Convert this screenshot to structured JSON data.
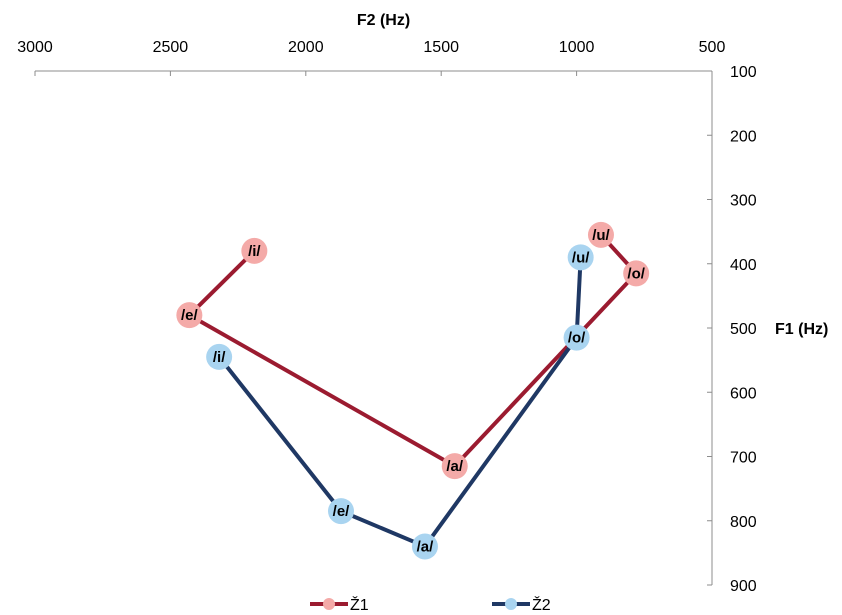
{
  "chart_data": {
    "type": "line",
    "xlabel": "F2 (Hz)",
    "ylabel": "F1 (Hz)",
    "xlim": [
      3000,
      500
    ],
    "ylim": [
      100,
      900
    ],
    "x_reversed": true,
    "y_reversed": true,
    "x_axis_position": "top",
    "y_axis_position": "right",
    "xticks": [
      3000,
      2500,
      2000,
      1500,
      1000,
      500
    ],
    "yticks": [
      100,
      200,
      300,
      400,
      500,
      600,
      700,
      800,
      900
    ],
    "grid": false,
    "legend_position": "bottom",
    "series": [
      {
        "name": "Ž1",
        "line_color": "#9b1b30",
        "marker_color": "#f4aaa8",
        "points": [
          {
            "label": "/i/",
            "x": 2190,
            "y": 380
          },
          {
            "label": "/e/",
            "x": 2430,
            "y": 480
          },
          {
            "label": "/a/",
            "x": 1450,
            "y": 715
          },
          {
            "label": "/o/",
            "x": 780,
            "y": 415
          },
          {
            "label": "/u/",
            "x": 910,
            "y": 355
          }
        ]
      },
      {
        "name": "Ž2",
        "line_color": "#1f3864",
        "marker_color": "#a9d4f0",
        "points": [
          {
            "label": "/i/",
            "x": 2320,
            "y": 545
          },
          {
            "label": "/e/",
            "x": 1870,
            "y": 785
          },
          {
            "label": "/a/",
            "x": 1560,
            "y": 840
          },
          {
            "label": "/o/",
            "x": 1000,
            "y": 515
          },
          {
            "label": "/u/",
            "x": 985,
            "y": 390
          }
        ]
      }
    ]
  }
}
